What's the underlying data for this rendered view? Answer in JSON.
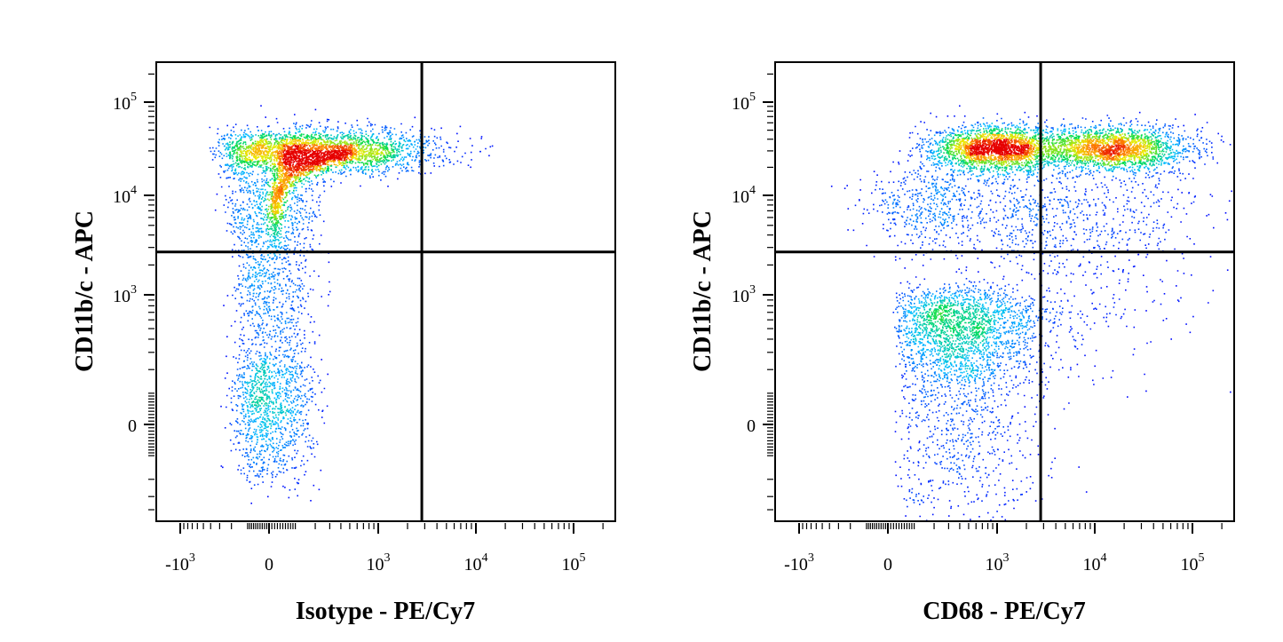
{
  "chart_data": [
    {
      "type": "scatter",
      "subtype": "flow-cytometry-density-dot-plot",
      "title": "",
      "xlabel": "Isotype - PE/Cy7",
      "ylabel": "CD11b/c - APC",
      "x_scale": "biexponential",
      "y_scale": "biexponential",
      "x_ticks": [
        {
          "base": "-10",
          "exp": "3",
          "value": -1000
        },
        {
          "base": "0",
          "exp": "",
          "value": 0
        },
        {
          "base": "10",
          "exp": "3",
          "value": 1000
        },
        {
          "base": "10",
          "exp": "4",
          "value": 10000
        },
        {
          "base": "10",
          "exp": "5",
          "value": 100000
        }
      ],
      "y_ticks": [
        {
          "base": "0",
          "exp": "",
          "value": 0
        },
        {
          "base": "10",
          "exp": "3",
          "value": 1000
        },
        {
          "base": "10",
          "exp": "4",
          "value": 10000
        },
        {
          "base": "10",
          "exp": "5",
          "value": 100000
        }
      ],
      "quadrant_gate": {
        "x": 2800,
        "y": 2700
      },
      "grid": false,
      "populations": [
        {
          "x_center": 500,
          "y_center": 30000,
          "x_spread_log": 0.45,
          "y_spread_log": 0.12,
          "count": 2600,
          "tail": "diagonal"
        },
        {
          "x_center": 0,
          "y_center": 30000,
          "x_spread_lin": 130,
          "y_spread_log": 0.12,
          "count": 1300
        },
        {
          "x_center": 0,
          "y_center": 8000,
          "x_spread_lin": 120,
          "y_spread_log": 0.25,
          "count": 500
        },
        {
          "x_center": 0,
          "y_center": 1200,
          "x_spread_lin": 90,
          "y_spread_log": 0.5,
          "count": 900
        },
        {
          "x_center": 0,
          "y_center": 50,
          "x_spread_lin": 90,
          "y_spread_lin": 120,
          "count": 1100
        }
      ]
    },
    {
      "type": "scatter",
      "subtype": "flow-cytometry-density-dot-plot",
      "title": "",
      "xlabel": "CD68 - PE/Cy7",
      "ylabel": "CD11b/c - APC",
      "x_scale": "biexponential",
      "y_scale": "biexponential",
      "x_ticks": [
        {
          "base": "-10",
          "exp": "3",
          "value": -1000
        },
        {
          "base": "0",
          "exp": "",
          "value": 0
        },
        {
          "base": "10",
          "exp": "3",
          "value": 1000
        },
        {
          "base": "10",
          "exp": "4",
          "value": 10000
        },
        {
          "base": "10",
          "exp": "5",
          "value": 100000
        }
      ],
      "y_ticks": [
        {
          "base": "0",
          "exp": "",
          "value": 0
        },
        {
          "base": "10",
          "exp": "3",
          "value": 1000
        },
        {
          "base": "10",
          "exp": "4",
          "value": 10000
        },
        {
          "base": "10",
          "exp": "5",
          "value": 100000
        }
      ],
      "quadrant_gate": {
        "x": 2800,
        "y": 2700
      },
      "grid": false,
      "populations": [
        {
          "x_center": 1000,
          "y_center": 32000,
          "x_spread_log": 0.35,
          "y_spread_log": 0.12,
          "count": 2400
        },
        {
          "x_center": 15000,
          "y_center": 32000,
          "x_spread_log": 0.4,
          "y_spread_log": 0.12,
          "count": 2200
        },
        {
          "x_center": 150,
          "y_center": 8000,
          "x_spread_lin": 150,
          "y_spread_log": 0.2,
          "count": 300
        },
        {
          "x_center": 2500,
          "y_center": 7000,
          "x_spread_log": 0.9,
          "y_spread_log": 0.3,
          "count": 900
        },
        {
          "x_center": 8000,
          "y_center": 1300,
          "x_spread_log": 0.6,
          "y_spread_log": 0.4,
          "count": 250
        },
        {
          "x_center": 400,
          "y_center": 400,
          "x_spread_log": 0.45,
          "y_spread_lin": 350,
          "count": 2800
        }
      ]
    }
  ]
}
